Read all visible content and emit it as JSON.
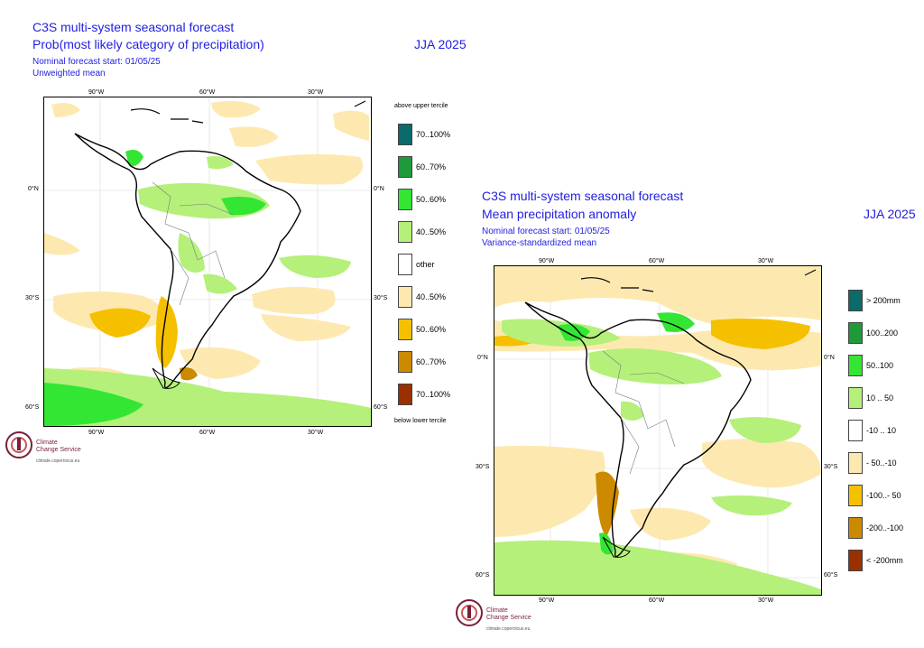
{
  "panel_left": {
    "title1": "C3S multi-system seasonal forecast",
    "title2": "Prob(most likely category of precipitation)",
    "season": "JJA 2025",
    "start": "Nominal forecast start: 01/05/25",
    "mean_type": "Unweighted mean",
    "lon_ticks": [
      "90°W",
      "60°W",
      "30°W"
    ],
    "lat_ticks": [
      "0°N",
      "30°S",
      "60°S"
    ],
    "legend_top": "above upper tercile",
    "legend_bottom": "below lower tercile",
    "legend": [
      {
        "label": "70..100%",
        "color": "#0b6b6b"
      },
      {
        "label": "60..70%",
        "color": "#1e9a3a"
      },
      {
        "label": "50..60%",
        "color": "#33e633"
      },
      {
        "label": "40..50%",
        "color": "#b5f07a"
      },
      {
        "label": "other",
        "color": "#ffffff"
      },
      {
        "label": "40..50%",
        "color": "#fde9b0"
      },
      {
        "label": "50..60%",
        "color": "#f5c000"
      },
      {
        "label": "60..70%",
        "color": "#cc8a00"
      },
      {
        "label": "70..100%",
        "color": "#9a3000"
      }
    ]
  },
  "panel_right": {
    "title1": "C3S multi-system seasonal forecast",
    "title2": "Mean precipitation anomaly",
    "season": "JJA 2025",
    "start": "Nominal forecast start: 01/05/25",
    "mean_type": "Variance-standardized mean",
    "lon_ticks": [
      "90°W",
      "60°W",
      "30°W"
    ],
    "lat_ticks": [
      "0°N",
      "30°S",
      "60°S"
    ],
    "legend": [
      {
        "label": "> 200mm",
        "color": "#0b6b6b"
      },
      {
        "label": "100..200",
        "color": "#1e9a3a"
      },
      {
        "label": "50..100",
        "color": "#33e633"
      },
      {
        "label": "10 .. 50",
        "color": "#b5f07a"
      },
      {
        "label": "-10 .. 10",
        "color": "#ffffff"
      },
      {
        "label": "- 50..-10",
        "color": "#fde9b0"
      },
      {
        "label": "-100..- 50",
        "color": "#f5c000"
      },
      {
        "label": "-200..-100",
        "color": "#cc8a00"
      },
      {
        "label": "< -200mm",
        "color": "#9a3000"
      }
    ]
  },
  "logo": {
    "line1": "Climate",
    "line2": "Change Service",
    "url": "climate.copernicus.eu"
  }
}
